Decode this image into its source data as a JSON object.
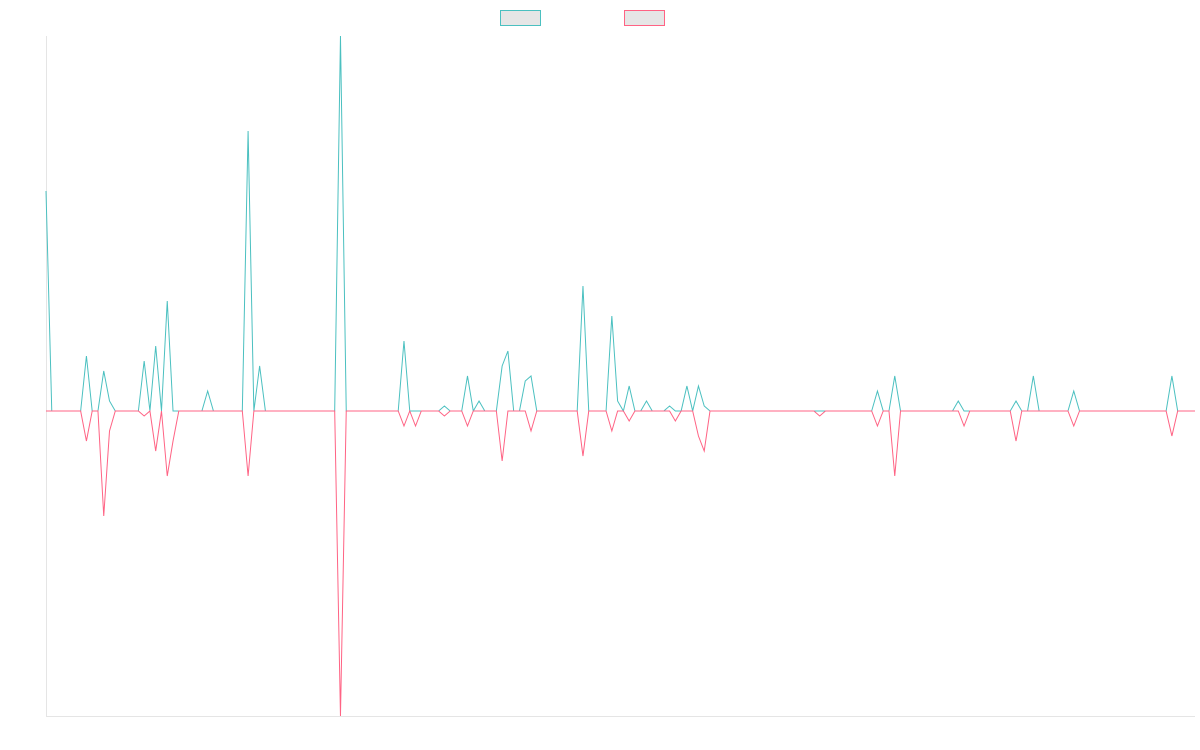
{
  "chart_data": {
    "type": "line",
    "legend": "top",
    "categories": [
      null,
      null,
      null,
      null,
      null,
      null,
      null,
      null,
      null,
      null,
      null,
      null,
      null,
      null,
      null,
      null,
      null,
      null,
      null,
      null,
      null,
      null,
      null,
      null,
      null,
      null,
      null,
      null,
      null,
      null,
      null,
      null,
      null,
      null,
      null,
      null,
      null,
      null,
      null,
      null,
      null,
      null,
      null,
      null,
      null,
      null,
      null,
      null,
      null,
      null,
      null,
      null,
      null,
      null,
      null,
      null,
      null,
      null,
      null,
      null,
      null,
      null,
      null,
      null,
      null,
      null,
      null,
      null,
      null,
      null,
      null,
      null,
      null,
      null,
      null,
      null,
      null,
      null,
      null,
      null,
      null,
      null,
      null,
      null,
      null,
      null,
      null,
      null,
      null,
      null,
      null,
      null,
      null,
      null,
      null,
      null,
      null,
      null,
      null,
      null,
      null,
      null,
      null,
      null,
      null,
      null,
      null,
      null,
      null,
      null,
      null,
      null,
      null,
      null,
      null,
      null,
      null,
      null,
      null,
      null,
      null,
      null,
      null,
      null,
      null,
      null,
      null,
      null,
      null,
      null,
      null,
      null,
      null,
      null,
      null,
      null,
      null,
      null,
      null,
      null,
      null,
      null,
      null,
      null,
      null,
      null,
      null,
      null,
      null,
      null,
      null,
      null,
      null,
      null,
      null,
      null,
      null,
      null,
      null,
      null,
      null,
      null,
      null,
      null,
      null,
      null,
      null,
      null,
      null,
      null,
      null,
      null,
      null,
      null,
      null,
      null,
      null,
      null,
      null,
      null,
      null,
      null,
      null,
      null,
      null,
      null,
      null,
      null,
      null,
      null,
      null,
      null,
      null,
      null,
      null,
      null,
      null,
      null,
      null,
      null
    ],
    "ylim": [
      -61,
      75
    ],
    "series": [
      {
        "color": "#4bc0c0",
        "values": [
          44,
          0,
          0,
          0,
          0,
          0,
          0,
          11,
          0,
          0,
          8,
          2,
          0,
          0,
          0,
          0,
          0,
          10,
          0,
          13,
          0,
          22,
          0,
          0,
          0,
          0,
          0,
          0,
          4,
          0,
          0,
          0,
          0,
          0,
          0,
          56,
          0,
          9,
          0,
          0,
          0,
          0,
          0,
          0,
          0,
          0,
          0,
          0,
          0,
          0,
          0,
          75,
          0,
          0,
          0,
          0,
          0,
          0,
          0,
          0,
          0,
          0,
          14,
          0,
          0,
          0,
          0,
          0,
          0,
          1,
          0,
          0,
          0,
          7,
          0,
          2,
          0,
          0,
          0,
          9,
          12,
          0,
          0,
          6,
          7,
          0,
          0,
          0,
          0,
          0,
          0,
          0,
          0,
          25,
          0,
          0,
          0,
          0,
          19,
          2,
          0,
          5,
          0,
          0,
          2,
          0,
          0,
          0,
          1,
          0,
          0,
          5,
          0,
          5,
          1,
          0,
          0,
          0,
          0,
          0,
          0,
          0,
          0,
          0,
          0,
          0,
          0,
          0,
          0,
          0,
          0,
          0,
          0,
          0,
          0,
          0,
          0,
          0,
          0,
          0,
          0,
          0,
          0,
          0,
          4,
          0,
          0,
          7,
          0,
          0,
          0,
          0,
          0,
          0,
          0,
          0,
          0,
          0,
          2,
          0,
          0,
          0,
          0,
          0,
          0,
          0,
          0,
          0,
          2,
          0,
          0,
          7,
          0,
          0,
          0,
          0,
          0,
          0,
          4,
          0,
          0,
          0,
          0,
          0,
          0,
          0,
          0,
          0,
          0,
          0,
          0,
          0,
          0,
          0,
          0,
          7,
          0,
          0,
          0,
          0
        ]
      },
      {
        "color": "#ff6384",
        "values": [
          0,
          0,
          0,
          0,
          0,
          0,
          0,
          -6,
          0,
          0,
          -21,
          -4,
          0,
          0,
          0,
          0,
          0,
          -1,
          0,
          -8,
          0,
          -13,
          -6,
          0,
          0,
          0,
          0,
          0,
          0,
          0,
          0,
          0,
          0,
          0,
          0,
          -13,
          0,
          0,
          0,
          0,
          0,
          0,
          0,
          0,
          0,
          0,
          0,
          0,
          0,
          0,
          0,
          -61,
          0,
          0,
          0,
          0,
          0,
          0,
          0,
          0,
          0,
          0,
          -3,
          0,
          -3,
          0,
          0,
          0,
          0,
          -1,
          0,
          0,
          0,
          -3,
          0,
          0,
          0,
          0,
          0,
          -10,
          0,
          0,
          0,
          0,
          -4,
          0,
          0,
          0,
          0,
          0,
          0,
          0,
          0,
          -9,
          0,
          0,
          0,
          0,
          -4,
          0,
          0,
          -2,
          0,
          0,
          0,
          0,
          0,
          0,
          0,
          -2,
          0,
          0,
          0,
          -5,
          -8,
          0,
          0,
          0,
          0,
          0,
          0,
          0,
          0,
          0,
          0,
          0,
          0,
          0,
          0,
          0,
          0,
          0,
          0,
          0,
          -1,
          0,
          0,
          0,
          0,
          0,
          0,
          0,
          0,
          0,
          -3,
          0,
          0,
          -13,
          0,
          0,
          0,
          0,
          0,
          0,
          0,
          0,
          0,
          0,
          0,
          -3,
          0,
          0,
          0,
          0,
          0,
          0,
          0,
          0,
          -6,
          0,
          0,
          0,
          0,
          0,
          0,
          0,
          0,
          0,
          -3,
          0,
          0,
          0,
          0,
          0,
          0,
          0,
          0,
          0,
          0,
          0,
          0,
          0,
          0,
          0,
          0,
          -5,
          0,
          0,
          0,
          0
        ]
      }
    ]
  }
}
